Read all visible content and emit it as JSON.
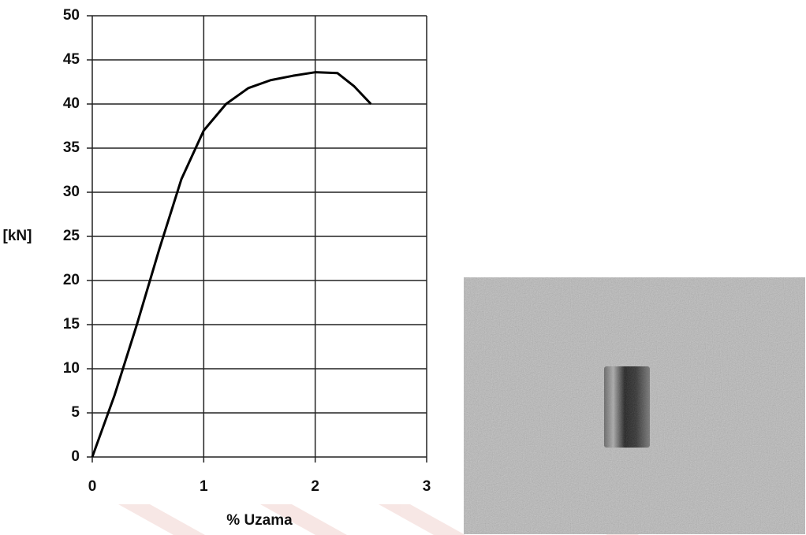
{
  "chart_data": {
    "type": "line",
    "x_label": "% Uzama",
    "y_label": "[kN]",
    "x": [
      0,
      0.2,
      0.4,
      0.6,
      0.8,
      1.0,
      1.2,
      1.4,
      1.6,
      1.8,
      2.0,
      2.2,
      2.35,
      2.5
    ],
    "values": [
      0,
      7,
      15,
      23.5,
      31.5,
      37,
      40,
      41.8,
      42.7,
      43.2,
      43.6,
      43.5,
      42,
      40
    ],
    "color": "#000000",
    "xlim": [
      0,
      3
    ],
    "xticks": [
      0,
      1,
      2,
      3
    ],
    "ylim": [
      0,
      50
    ],
    "yticks": [
      0,
      5,
      10,
      15,
      20,
      25,
      30,
      35,
      40,
      45,
      50
    ],
    "grid": true
  }
}
